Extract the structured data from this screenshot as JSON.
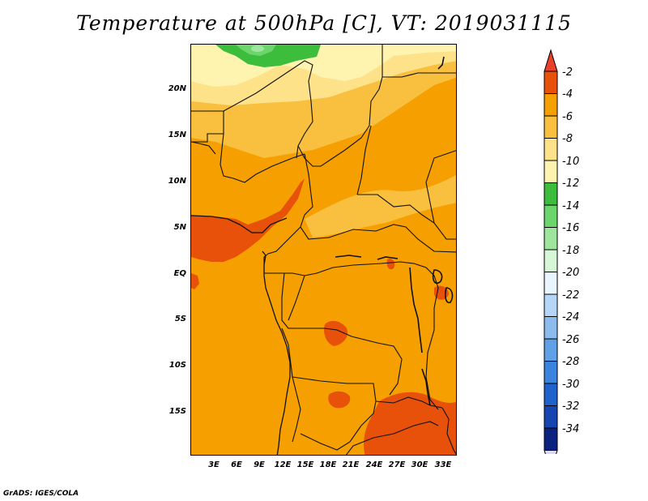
{
  "title": "Temperature at 500hPa [C], VT: 2019031115",
  "credit": "GrADS: IGES/COLA",
  "map": {
    "lat_labels": [
      "20N",
      "15N",
      "10N",
      "5N",
      "EQ",
      "5S",
      "10S",
      "15S"
    ],
    "lat_values": [
      20,
      15,
      10,
      5,
      0,
      -5,
      -10,
      -15
    ],
    "lon_labels": [
      "3E",
      "6E",
      "9E",
      "12E",
      "15E",
      "18E",
      "21E",
      "24E",
      "27E",
      "30E",
      "33E"
    ],
    "lon_values": [
      3,
      6,
      9,
      12,
      15,
      18,
      21,
      24,
      27,
      30,
      33
    ],
    "colors": {
      "gt_-4": "#e8510a",
      "-6_-4": "#f5a000",
      "-8_-6": "#f9c040",
      "-10_-8": "#fde28a",
      "-12_-10": "#fff3b0",
      "-14_-12": "#3cbe3c",
      "-16_-14": "#6cd56c"
    }
  },
  "colorbar": {
    "labels": [
      "-2",
      "-4",
      "-6",
      "-8",
      "-10",
      "-12",
      "-14",
      "-16",
      "-18",
      "-20",
      "-22",
      "-24",
      "-26",
      "-28",
      "-30",
      "-32",
      "-34"
    ],
    "colors": [
      "#e8510a",
      "#f5a000",
      "#f9c040",
      "#fde28a",
      "#fff3b0",
      "#3cbe3c",
      "#6cd56c",
      "#9ee69e",
      "#d7f5d7",
      "#eaf6ff",
      "#b4d7f7",
      "#8cbcee",
      "#5fa0e6",
      "#3a83de",
      "#1f62cc",
      "#1545b0",
      "#0a2380"
    ],
    "top_color": "#e8402a",
    "bottom_color": "#dcd8f5"
  }
}
